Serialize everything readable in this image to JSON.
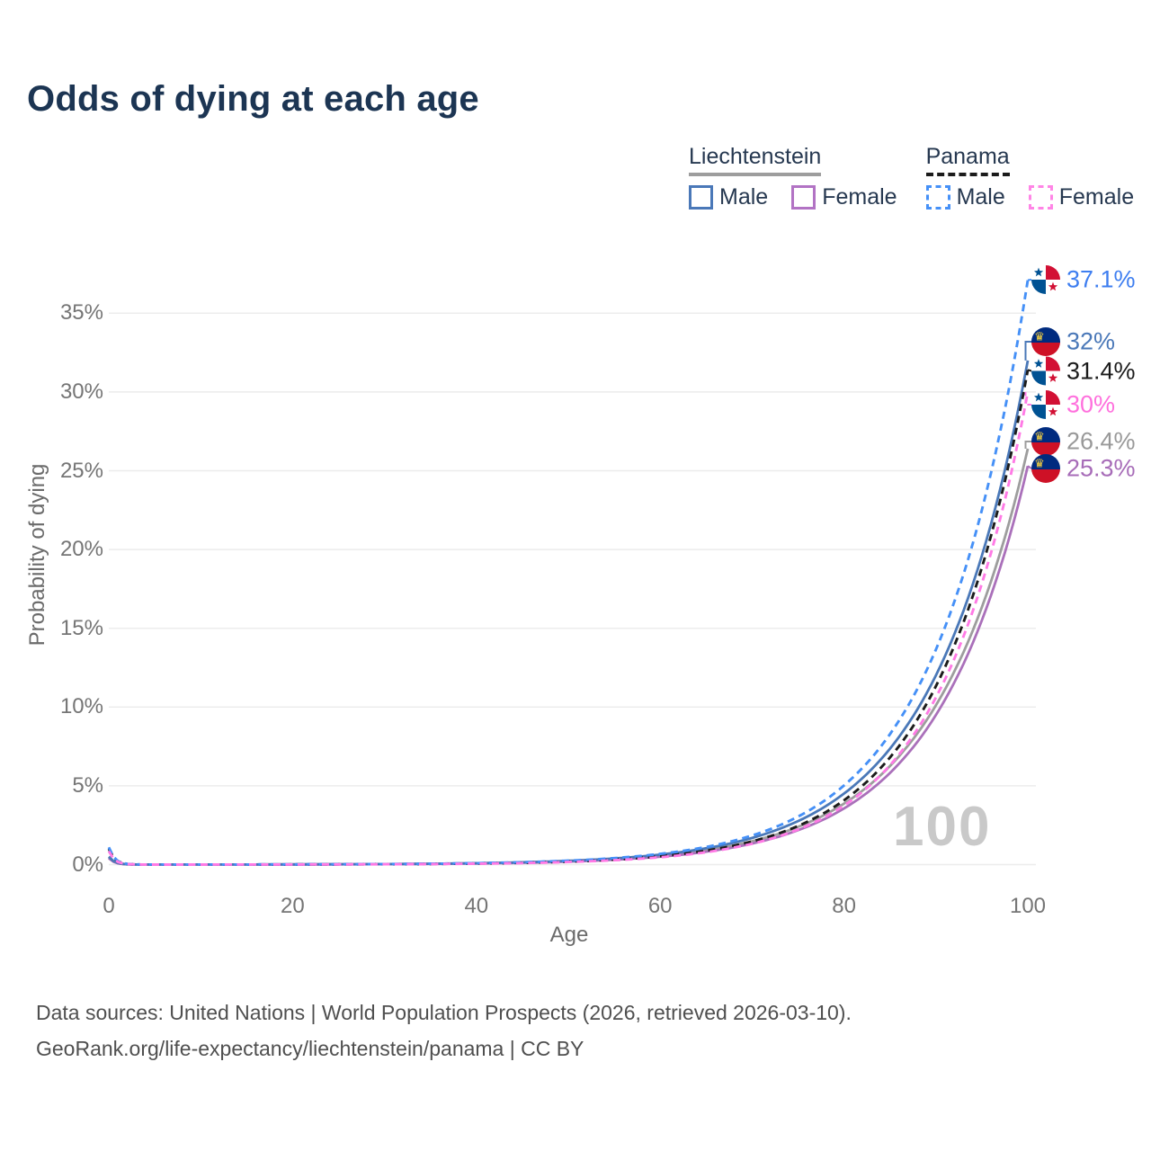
{
  "title": "Odds of dying at each age",
  "legend": {
    "groups": [
      {
        "label": "Liechtenstein",
        "line_color": "#9d9d9d",
        "line_dashed": false,
        "items": [
          {
            "label": "Male",
            "color": "#4a78b8",
            "dashed": false
          },
          {
            "label": "Female",
            "color": "#b273c4",
            "dashed": false
          }
        ]
      },
      {
        "label": "Panama",
        "line_color": "#1b1b1b",
        "line_dashed": true,
        "items": [
          {
            "label": "Male",
            "color": "#4590f7",
            "dashed": true
          },
          {
            "label": "Female",
            "color": "#ff85e6",
            "dashed": true
          }
        ]
      }
    ]
  },
  "chart_data": {
    "type": "line",
    "title": "Odds of dying at each age",
    "xlabel": "Age",
    "ylabel": "Probability of dying",
    "x_ticks": [
      0,
      20,
      40,
      60,
      80,
      100
    ],
    "y_tick_labels": [
      "0%",
      "5%",
      "10%",
      "15%",
      "20%",
      "25%",
      "30%",
      "35%"
    ],
    "xlim": [
      0,
      100
    ],
    "ylim_pct": [
      0,
      37.5
    ],
    "grid": true,
    "legend_position": "top-right",
    "hover_age": "100",
    "ages_sampled": [
      0,
      20,
      40,
      60,
      80,
      90,
      100
    ],
    "series": [
      {
        "name": "Panama — Male",
        "country": "Panama",
        "sex": "Male",
        "flag": "panama",
        "dashed": true,
        "color": "#4590f7",
        "label": "37.1%",
        "label_color": "#3e7ef0",
        "end_value_pct": 37.1,
        "infant_pct": 1.1,
        "gompertz_b": 0.1,
        "values_pct": [
          1.1,
          0.01,
          0.09,
          0.68,
          5.0,
          13.7,
          37.1
        ]
      },
      {
        "name": "Liechtenstein — Male",
        "country": "Liechtenstein",
        "sex": "Male",
        "flag": "liechtenstein",
        "dashed": false,
        "color": "#4a78b8",
        "label": "32%",
        "label_color": "#4a78b8",
        "end_value_pct": 32,
        "infant_pct": 0.5,
        "gompertz_b": 0.098,
        "values_pct": [
          0.5,
          0.01,
          0.09,
          0.64,
          4.5,
          12.0,
          32
        ]
      },
      {
        "name": "Panama — Both sexes",
        "country": "Panama",
        "sex": "Both sexes",
        "flag": "panama",
        "dashed": true,
        "color": "#1b1b1b",
        "label": "31.4%",
        "label_color": "#1b1b1b",
        "end_value_pct": 31.4,
        "infant_pct": 1.0,
        "gompertz_b": 0.102,
        "values_pct": [
          1.0,
          0.009,
          0.07,
          0.53,
          4.1,
          11.3,
          31.4
        ]
      },
      {
        "name": "Panama — Female",
        "country": "Panama",
        "sex": "Female",
        "flag": "panama",
        "dashed": true,
        "color": "#ff7ae5",
        "label": "30%",
        "label_color": "#ff70dd",
        "end_value_pct": 30,
        "infant_pct": 0.85,
        "gompertz_b": 0.104,
        "values_pct": [
          0.85,
          0.007,
          0.06,
          0.47,
          3.7,
          10.6,
          30
        ]
      },
      {
        "name": "Liechtenstein — Both sexes",
        "country": "Liechtenstein",
        "sex": "Both sexes",
        "flag": "liechtenstein",
        "dashed": false,
        "color": "#9d9d9d",
        "label": "26.4%",
        "label_color": "#999999",
        "end_value_pct": 26.4,
        "infant_pct": 0.45,
        "gompertz_b": 0.096,
        "values_pct": [
          0.45,
          0.012,
          0.08,
          0.57,
          3.9,
          10.1,
          26.4
        ]
      },
      {
        "name": "Liechtenstein — Female",
        "country": "Liechtenstein",
        "sex": "Female",
        "flag": "liechtenstein",
        "dashed": false,
        "color": "#aa70ba",
        "label": "25.3%",
        "label_color": "#a76cb8",
        "end_value_pct": 25.3,
        "infant_pct": 0.4,
        "gompertz_b": 0.098,
        "values_pct": [
          0.4,
          0.01,
          0.07,
          0.5,
          3.6,
          9.5,
          25.3
        ]
      }
    ]
  },
  "flag_colors": {
    "panama_red": "#d21034",
    "panama_blue": "#005293",
    "liechtenstein_blue": "#002b7f",
    "liechtenstein_red": "#ce1126",
    "liechtenstein_crown": "#ffd83c"
  },
  "footer": {
    "line1": "Data sources: United Nations | World Population Prospects (2026, retrieved 2026-03-10).",
    "line2": "GeoRank.org/life-expectancy/liechtenstein/panama | CC BY"
  }
}
